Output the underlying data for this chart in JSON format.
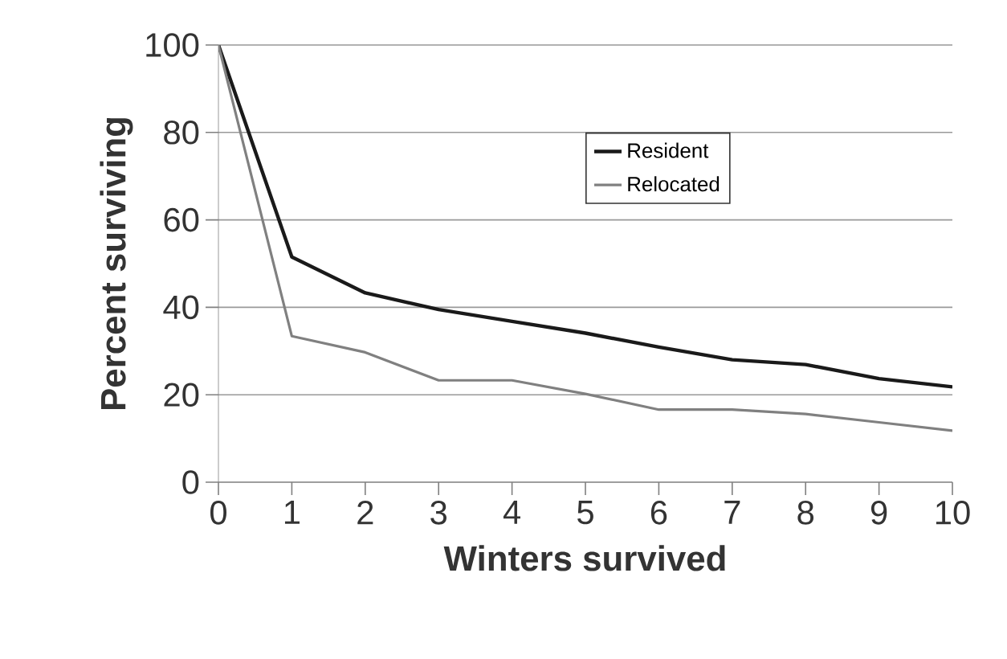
{
  "chart_data": {
    "type": "line",
    "xlabel": "Winters survived",
    "ylabel": "Percent surviving",
    "x": [
      0,
      1,
      2,
      3,
      4,
      5,
      6,
      7,
      8,
      9,
      10
    ],
    "series": [
      {
        "name": "Resident",
        "color": "#1a1a1a",
        "values": [
          100,
          51.5,
          43.3,
          39.5,
          36.8,
          34.1,
          30.9,
          28,
          26.9,
          23.7,
          21.8
        ]
      },
      {
        "name": "Relocated",
        "color": "#808080",
        "values": [
          100,
          33.4,
          29.7,
          23.3,
          23.3,
          20.2,
          16.6,
          16.6,
          15.6,
          13.7,
          11.8
        ]
      }
    ],
    "xlim": [
      0,
      10
    ],
    "xticks": [
      0,
      1,
      2,
      3,
      4,
      5,
      6,
      7,
      8,
      9,
      10
    ],
    "ylim": [
      0,
      100
    ],
    "yticks": [
      0,
      20,
      40,
      60,
      80,
      100
    ],
    "grid": "y",
    "legend": "right",
    "marker": "none",
    "line_style": "solid"
  }
}
